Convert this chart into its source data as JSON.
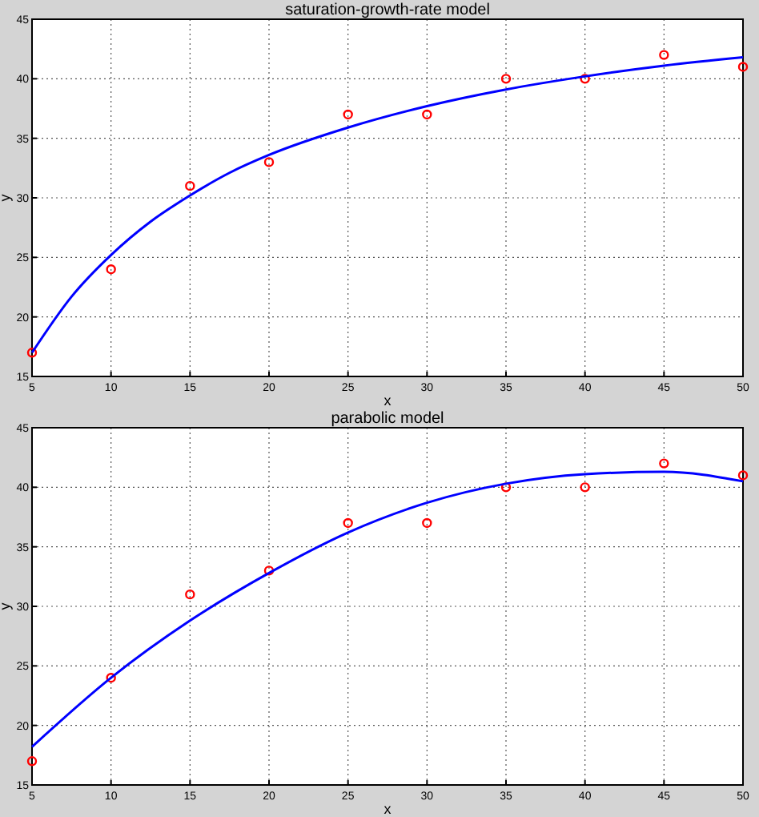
{
  "chart_data": [
    {
      "type": "scatter",
      "title": "saturation-growth-rate model",
      "xlabel": "x",
      "ylabel": "y",
      "x": [
        5,
        10,
        15,
        20,
        25,
        30,
        35,
        40,
        45,
        50
      ],
      "xlim": [
        5,
        50
      ],
      "ylim": [
        15,
        45
      ],
      "xticks": [
        5,
        10,
        15,
        20,
        25,
        30,
        35,
        40,
        45,
        50
      ],
      "yticks": [
        15,
        20,
        25,
        30,
        35,
        40,
        45
      ],
      "grid": true,
      "series": [
        {
          "color": "#ff0000",
          "marker": "circle",
          "values": [
            17,
            24,
            31,
            33,
            37,
            37,
            40,
            40,
            42,
            41
          ]
        },
        {
          "type": "line",
          "color": "#0000ff",
          "marker": "none",
          "line_style": "solid",
          "x": [
            5,
            7.5,
            10,
            12.5,
            15,
            17.5,
            20,
            25,
            30,
            35,
            40,
            45,
            50
          ],
          "values": [
            17,
            21.7,
            25.2,
            28,
            30.2,
            32.1,
            33.6,
            35.9,
            37.7,
            39.1,
            40.2,
            41.1,
            41.8
          ]
        }
      ]
    },
    {
      "type": "scatter",
      "title": "parabolic model",
      "xlabel": "x",
      "ylabel": "y",
      "x": [
        5,
        10,
        15,
        20,
        25,
        30,
        35,
        40,
        45,
        50
      ],
      "xlim": [
        5,
        50
      ],
      "ylim": [
        15,
        45
      ],
      "xticks": [
        5,
        10,
        15,
        20,
        25,
        30,
        35,
        40,
        45,
        50
      ],
      "yticks": [
        15,
        20,
        25,
        30,
        35,
        40,
        45
      ],
      "grid": true,
      "series": [
        {
          "color": "#ff0000",
          "marker": "circle",
          "values": [
            17,
            24,
            31,
            33,
            37,
            37,
            40,
            40,
            42,
            41
          ]
        },
        {
          "type": "line",
          "color": "#0000ff",
          "marker": "none",
          "line_style": "solid",
          "x": [
            5,
            10,
            15,
            20,
            25,
            30,
            35,
            40,
            45,
            50
          ],
          "values": [
            18.2,
            24,
            28.8,
            32.8,
            36.2,
            38.7,
            40.3,
            41.1,
            41.3,
            40.5
          ]
        }
      ]
    }
  ]
}
